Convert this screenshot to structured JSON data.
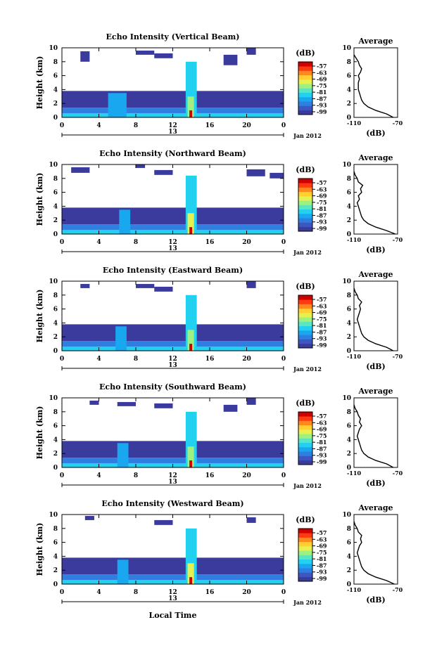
{
  "xlabel": "Local Time",
  "time_ticks": [
    "0",
    "4",
    "8",
    "12",
    "16",
    "20",
    "0"
  ],
  "day_label": "13",
  "month_label": "Jan 2012",
  "height_label": "Height (km)",
  "height_ticks": [
    "0",
    "2",
    "4",
    "6",
    "8",
    "10"
  ],
  "colorbar_unit": "(dB)",
  "colorbar_ticks": [
    "-57",
    "-63",
    "-69",
    "-75",
    "-81",
    "-87",
    "-93",
    "-99"
  ],
  "avg_title": "Average",
  "avg_xticks": [
    "-110",
    "-70"
  ],
  "avg_xlabel": "(dB)",
  "colors": {
    "scale": [
      "#3b3b9e",
      "#3f56c0",
      "#2f7ee0",
      "#19a8f0",
      "#22d0f0",
      "#5ce6c0",
      "#a0f080",
      "#e6f050",
      "#ffd030",
      "#ff8a1c",
      "#ff3a10",
      "#d00000"
    ]
  },
  "chart_data": [
    {
      "type": "heatmap",
      "title": "Echo Intensity (Vertical Beam)",
      "xlim": [
        0,
        24
      ],
      "ylim": [
        0,
        10
      ],
      "clim": [
        -99,
        -57
      ],
      "cells": [
        [
          0,
          24,
          0,
          0.6,
          -85
        ],
        [
          0,
          24,
          0.6,
          1.4,
          -91
        ],
        [
          0,
          24,
          1.4,
          3.8,
          -97
        ],
        [
          5,
          7,
          0,
          3.5,
          -87
        ],
        [
          13.4,
          14.6,
          0,
          8,
          -84
        ],
        [
          13.6,
          14.3,
          0,
          3,
          -75
        ],
        [
          13.8,
          14.1,
          0,
          1,
          -60
        ],
        [
          2,
          3,
          8,
          9.5,
          -97
        ],
        [
          8,
          10,
          9,
          9.6,
          -97
        ],
        [
          17.5,
          19,
          7.5,
          9,
          -97
        ],
        [
          20,
          21,
          9,
          10,
          -97
        ],
        [
          10,
          12,
          8.5,
          9.2,
          -97
        ]
      ],
      "avg_profile": {
        "height_km": [
          0,
          0.5,
          1,
          1.5,
          2,
          2.5,
          3,
          3.5,
          4,
          4.5,
          5,
          5.5,
          6,
          6.5,
          7,
          7.5,
          8,
          8.5,
          9
        ],
        "db": [
          -74,
          -80,
          -90,
          -97,
          -101,
          -103,
          -104,
          -105,
          -106,
          -106,
          -106,
          -105,
          -106,
          -104,
          -103,
          -105,
          -106,
          -108,
          -110
        ]
      }
    },
    {
      "type": "heatmap",
      "title": "Echo Intensity (Northward Beam)",
      "xlim": [
        0,
        24
      ],
      "ylim": [
        0,
        10
      ],
      "clim": [
        -99,
        -57
      ],
      "cells": [
        [
          0,
          24,
          0,
          0.6,
          -84
        ],
        [
          0,
          24,
          0.6,
          1.4,
          -90
        ],
        [
          0,
          24,
          1.4,
          3.8,
          -97
        ],
        [
          6.2,
          7.4,
          0,
          3.5,
          -86
        ],
        [
          13.4,
          14.6,
          0,
          8.4,
          -83
        ],
        [
          13.6,
          14.3,
          0,
          3,
          -74
        ],
        [
          13.8,
          14.1,
          0,
          1,
          -60
        ],
        [
          1,
          3,
          8.8,
          9.6,
          -97
        ],
        [
          8,
          9,
          9.5,
          10,
          -97
        ],
        [
          20,
          22,
          8.3,
          9.3,
          -97
        ],
        [
          22.5,
          24,
          8,
          8.8,
          -97
        ],
        [
          10,
          12,
          8.5,
          9.2,
          -97
        ]
      ],
      "avg_profile": {
        "height_km": [
          0,
          0.5,
          1,
          1.5,
          2,
          2.5,
          3,
          3.5,
          4,
          4.5,
          5,
          5.5,
          6,
          6.5,
          7,
          7.5,
          8,
          8.5,
          9
        ],
        "db": [
          -72,
          -80,
          -90,
          -97,
          -101,
          -103,
          -104,
          -105,
          -106,
          -107,
          -105,
          -106,
          -103,
          -104,
          -102,
          -106,
          -107,
          -109,
          -110
        ]
      }
    },
    {
      "type": "heatmap",
      "title": "Echo Intensity (Eastward Beam)",
      "xlim": [
        0,
        24
      ],
      "ylim": [
        0,
        10
      ],
      "clim": [
        -99,
        -57
      ],
      "cells": [
        [
          0,
          24,
          0,
          0.6,
          -85
        ],
        [
          0,
          24,
          0.6,
          1.4,
          -91
        ],
        [
          0,
          24,
          1.4,
          3.8,
          -97
        ],
        [
          5.8,
          7,
          0,
          3.5,
          -87
        ],
        [
          13.4,
          14.6,
          0,
          8,
          -84
        ],
        [
          13.6,
          14.3,
          0,
          3,
          -75
        ],
        [
          13.8,
          14.1,
          0,
          1,
          -60
        ],
        [
          2,
          3,
          9,
          9.6,
          -97
        ],
        [
          8,
          10,
          9,
          9.6,
          -97
        ],
        [
          10,
          12,
          8.5,
          9.2,
          -97
        ],
        [
          20,
          21,
          9,
          10,
          -97
        ]
      ],
      "avg_profile": {
        "height_km": [
          0,
          0.5,
          1,
          1.5,
          2,
          2.5,
          3,
          3.5,
          4,
          4.5,
          5,
          5.5,
          6,
          6.5,
          7,
          7.5,
          8,
          8.5,
          9
        ],
        "db": [
          -74,
          -80,
          -90,
          -97,
          -101,
          -103,
          -104,
          -105,
          -106,
          -107,
          -106,
          -105,
          -104,
          -105,
          -103,
          -106,
          -107,
          -109,
          -110
        ]
      }
    },
    {
      "type": "heatmap",
      "title": "Echo Intensity (Southward Beam)",
      "xlim": [
        0,
        24
      ],
      "ylim": [
        0,
        10
      ],
      "clim": [
        -99,
        -57
      ],
      "cells": [
        [
          0,
          24,
          0,
          0.6,
          -85
        ],
        [
          0,
          24,
          0.6,
          1.4,
          -91
        ],
        [
          0,
          24,
          1.4,
          3.8,
          -97
        ],
        [
          6,
          7.2,
          0,
          3.5,
          -87
        ],
        [
          13.4,
          14.6,
          0,
          8,
          -84
        ],
        [
          13.6,
          14.3,
          0,
          3,
          -75
        ],
        [
          13.8,
          14.1,
          0,
          1,
          -60
        ],
        [
          3,
          4,
          9,
          9.6,
          -97
        ],
        [
          6,
          8,
          8.8,
          9.4,
          -97
        ],
        [
          10,
          12,
          8.5,
          9.2,
          -97
        ],
        [
          17.5,
          19,
          8,
          9,
          -97
        ],
        [
          20,
          21,
          9,
          10,
          -97
        ]
      ],
      "avg_profile": {
        "height_km": [
          0,
          0.5,
          1,
          1.5,
          2,
          2.5,
          3,
          3.5,
          4,
          4.5,
          5,
          5.5,
          6,
          6.5,
          7,
          7.5,
          8,
          8.5,
          9
        ],
        "db": [
          -74,
          -80,
          -90,
          -97,
          -101,
          -103,
          -104,
          -105,
          -106,
          -107,
          -106,
          -105,
          -103,
          -105,
          -104,
          -106,
          -107,
          -109,
          -110
        ]
      }
    },
    {
      "type": "heatmap",
      "title": "Echo Intensity (Westward Beam)",
      "xlim": [
        0,
        24
      ],
      "ylim": [
        0,
        10
      ],
      "clim": [
        -99,
        -57
      ],
      "cells": [
        [
          0,
          24,
          0,
          0.6,
          -84
        ],
        [
          0,
          24,
          0.6,
          1.4,
          -90
        ],
        [
          0,
          24,
          1.4,
          3.8,
          -97
        ],
        [
          6,
          7.2,
          0,
          3.5,
          -86
        ],
        [
          13.4,
          14.6,
          0,
          8,
          -84
        ],
        [
          13.6,
          14.3,
          0,
          3,
          -74
        ],
        [
          13.8,
          14.1,
          0,
          1,
          -60
        ],
        [
          2.5,
          3.5,
          9.2,
          9.8,
          -97
        ],
        [
          10,
          12,
          8.5,
          9.2,
          -97
        ],
        [
          20,
          21,
          8.8,
          9.6,
          -97
        ]
      ],
      "avg_profile": {
        "height_km": [
          0,
          0.5,
          1,
          1.5,
          2,
          2.5,
          3,
          3.5,
          4,
          4.5,
          5,
          5.5,
          6,
          6.5,
          7,
          7.5,
          8,
          8.5,
          9
        ],
        "db": [
          -73,
          -80,
          -90,
          -97,
          -101,
          -103,
          -104,
          -105,
          -106,
          -107,
          -106,
          -105,
          -103,
          -104,
          -103,
          -106,
          -107,
          -109,
          -110
        ]
      }
    }
  ]
}
